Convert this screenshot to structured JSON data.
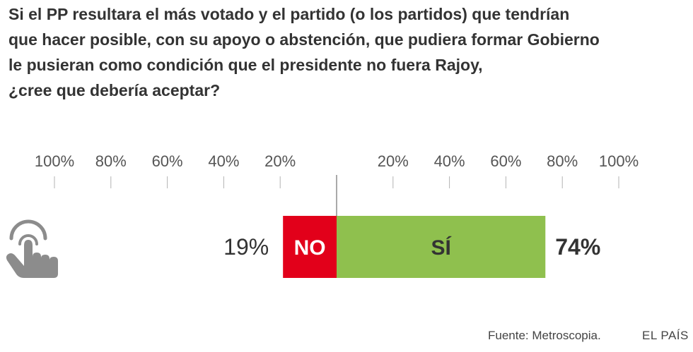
{
  "title_lines": [
    "Si el PP resultara el más votado y el partido (o los partidos) que tendrían",
    "que hacer posible, con su apoyo o abstención, que pudiera formar Gobierno",
    "le pusieran como condición que el presidente no fuera Rajoy,",
    "¿cree que debería aceptar?"
  ],
  "chart_data": {
    "type": "bar",
    "orientation": "horizontal-diverging",
    "title": "Si el PP resultara el más votado y el partido (o los partidos) que tendrían que hacer posible, con su apoyo o abstención, que pudiera formar Gobierno le pusieran como condición que el presidente no fuera Rajoy, ¿cree que debería aceptar?",
    "left_ticks": [
      "100%",
      "80%",
      "60%",
      "40%",
      "20%"
    ],
    "right_ticks": [
      "20%",
      "40%",
      "60%",
      "80%",
      "100%"
    ],
    "xlim": [
      -100,
      100
    ],
    "grid": false,
    "series": [
      {
        "name": "NO",
        "value": 19,
        "value_label": "19%",
        "side": "left",
        "color": "#e2001a"
      },
      {
        "name": "SÍ",
        "value": 74,
        "value_label": "74%",
        "side": "right",
        "color": "#8fc04e"
      }
    ]
  },
  "footer": {
    "source": "Fuente: Metroscopia.",
    "brand": "EL PAÍS"
  },
  "icons": {
    "hand": "pointing-hand-icon"
  }
}
